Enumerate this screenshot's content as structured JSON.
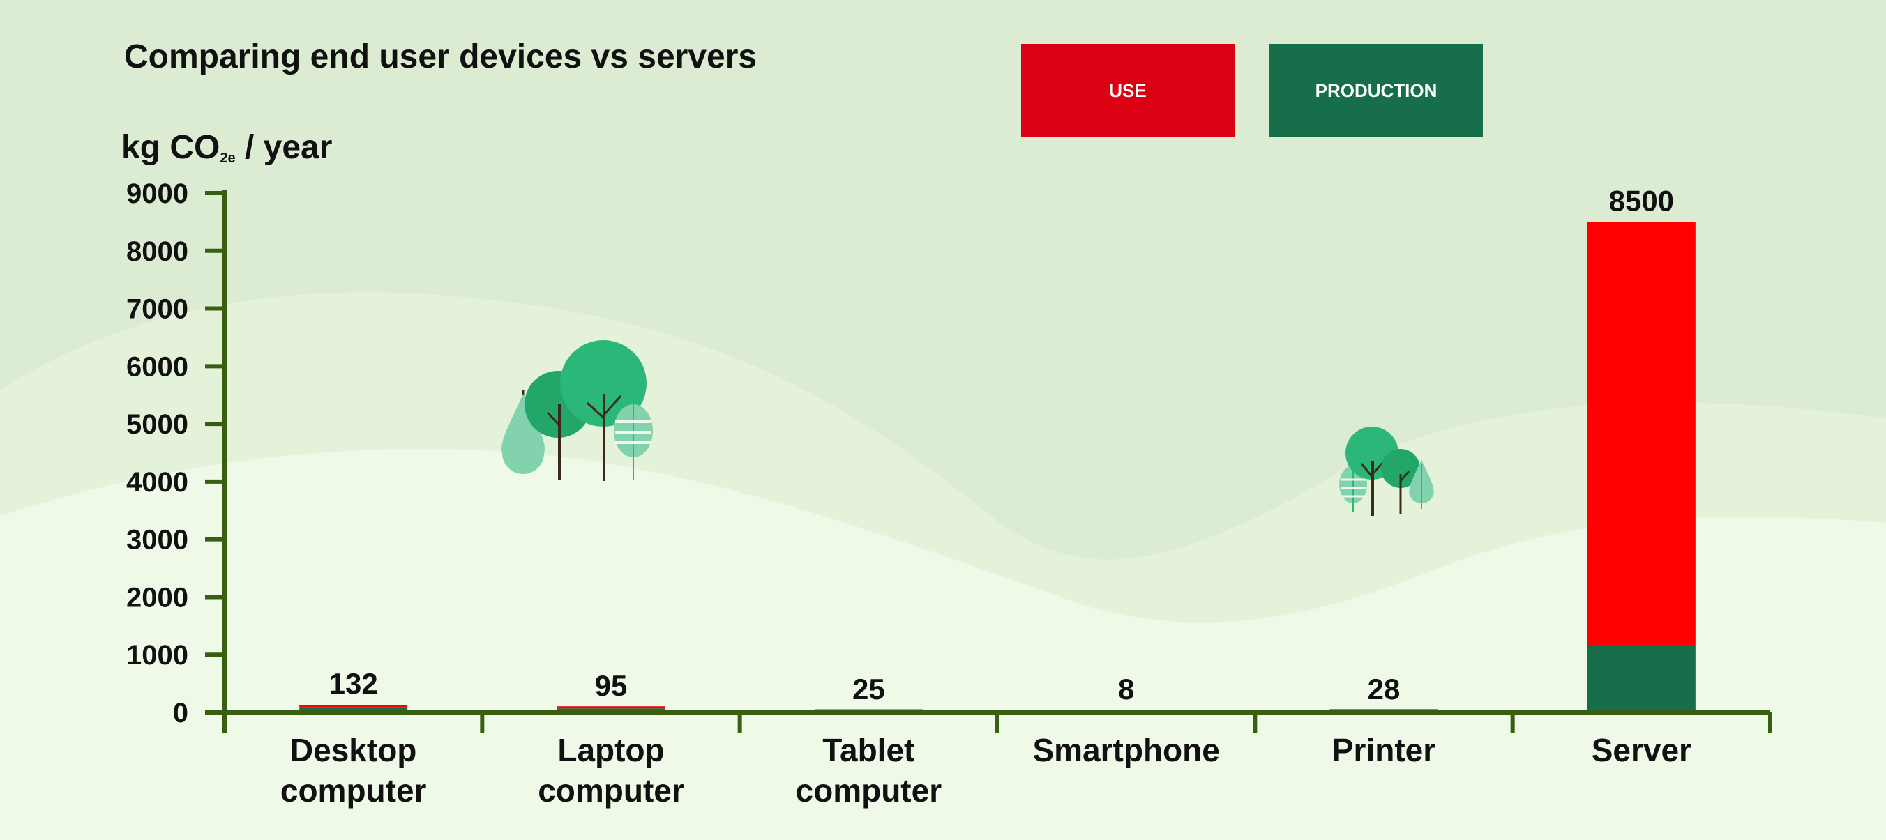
{
  "chart_data": {
    "type": "bar",
    "stacked": true,
    "title": "Comparing end user devices vs servers",
    "ylabel_main": "kg CO",
    "ylabel_sub": "2e",
    "ylabel_rest": " / year",
    "categories": [
      [
        "Desktop",
        "computer"
      ],
      [
        "Laptop",
        "computer"
      ],
      [
        "Tablet",
        "computer"
      ],
      [
        "Smartphone"
      ],
      [
        "Printer"
      ],
      [
        "Server"
      ]
    ],
    "series": [
      {
        "name": "PRODUCTION",
        "color": "#166e4a",
        "values": [
          95,
          70,
          18,
          7,
          20,
          1150
        ]
      },
      {
        "name": "USE",
        "color": "#ff0000",
        "values": [
          37,
          25,
          7,
          1,
          8,
          7350
        ]
      }
    ],
    "totals": [
      "132",
      "95",
      "25",
      "8",
      "28",
      "8500"
    ],
    "ylim": [
      0,
      9000
    ],
    "yticks": [
      0,
      1000,
      2000,
      3000,
      4000,
      5000,
      6000,
      7000,
      8000,
      9000
    ],
    "legend": {
      "position": "top-center",
      "use_color": "#dc0013",
      "production_color": "#166e4a"
    },
    "axis_color": "#3a5e10"
  }
}
